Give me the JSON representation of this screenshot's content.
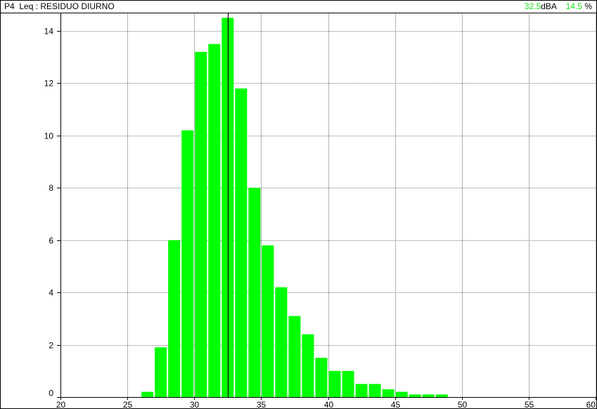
{
  "header": {
    "title": "P4  Leq : RESIDUO DIURNO",
    "cursor_value": "32.5",
    "cursor_unit": "dBA",
    "cursor_percent": "14.5",
    "percent_unit": "%"
  },
  "colors": {
    "bar": "#00ff00",
    "accent_text": "#20e020",
    "grid": "#000000",
    "cursor": "#000000"
  },
  "chart_data": {
    "type": "bar",
    "title": "P4  Leq : RESIDUO DIURNO",
    "xlabel": "",
    "ylabel": "",
    "xlim": [
      20,
      60
    ],
    "ylim": [
      0,
      14.7
    ],
    "x_ticks": [
      20,
      25,
      30,
      35,
      40,
      45,
      50,
      55,
      60
    ],
    "y_ticks": [
      0,
      2,
      4,
      6,
      8,
      10,
      12,
      14
    ],
    "bin_width": 1,
    "grid": true,
    "cursor_x": 32.5,
    "bins_left_edge": [
      26,
      27,
      28,
      29,
      30,
      31,
      32,
      33,
      34,
      35,
      36,
      37,
      38,
      39,
      40,
      41,
      42,
      43,
      44,
      45,
      46,
      47,
      48
    ],
    "values": [
      0.2,
      1.9,
      6.0,
      10.2,
      13.2,
      13.5,
      14.5,
      11.8,
      8.0,
      5.8,
      4.2,
      3.1,
      2.4,
      1.5,
      1.0,
      1.0,
      0.5,
      0.5,
      0.3,
      0.2,
      0.1,
      0.1,
      0.1
    ]
  }
}
